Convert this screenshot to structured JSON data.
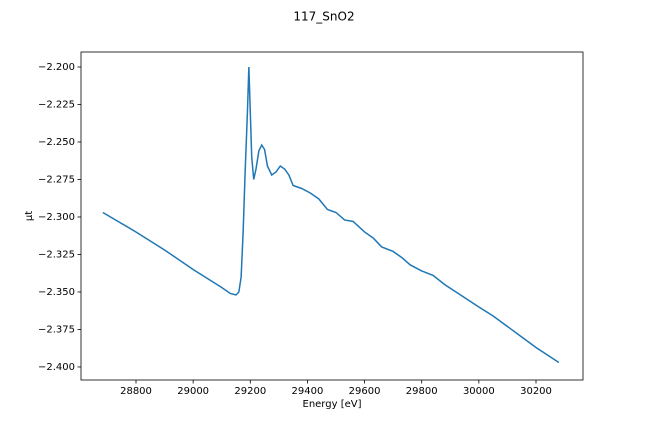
{
  "chart_data": {
    "type": "line",
    "title": "117_SnO2",
    "xlabel": "Energy [eV]",
    "ylabel": "μt",
    "x": [
      28684,
      28800,
      28900,
      29000,
      29100,
      29130,
      29150,
      29160,
      29168,
      29175,
      29182,
      29190,
      29195,
      29200,
      29205,
      29212,
      29220,
      29230,
      29240,
      29250,
      29260,
      29275,
      29290,
      29305,
      29320,
      29335,
      29350,
      29380,
      29410,
      29440,
      29470,
      29500,
      29530,
      29560,
      29600,
      29630,
      29660,
      29700,
      29730,
      29760,
      29800,
      29840,
      29880,
      29920,
      29960,
      30000,
      30050,
      30100,
      30150,
      30200,
      30240,
      30280
    ],
    "series": [
      {
        "color": "#1f77b4",
        "values": [
          -2.297,
          -2.31,
          -2.322,
          -2.335,
          -2.347,
          -2.351,
          -2.352,
          -2.35,
          -2.34,
          -2.31,
          -2.27,
          -2.23,
          -2.2,
          -2.23,
          -2.26,
          -2.275,
          -2.268,
          -2.256,
          -2.252,
          -2.255,
          -2.266,
          -2.272,
          -2.27,
          -2.266,
          -2.268,
          -2.272,
          -2.279,
          -2.281,
          -2.284,
          -2.288,
          -2.295,
          -2.297,
          -2.302,
          -2.303,
          -2.31,
          -2.314,
          -2.32,
          -2.323,
          -2.327,
          -2.332,
          -2.336,
          -2.339,
          -2.345,
          -2.35,
          -2.355,
          -2.36,
          -2.366,
          -2.373,
          -2.38,
          -2.387,
          -2.392,
          -2.397
        ]
      }
    ],
    "xlim": [
      28607.5,
      30364.5
    ],
    "ylim": [
      -2.4087,
      -2.19
    ],
    "xticks": [
      28800,
      29000,
      29200,
      29400,
      29600,
      29800,
      30000,
      30200
    ],
    "yticks": [
      {
        "value": -2.2,
        "label": "−2.200"
      },
      {
        "value": -2.225,
        "label": "−2.225"
      },
      {
        "value": -2.25,
        "label": "−2.250"
      },
      {
        "value": -2.275,
        "label": "−2.275"
      },
      {
        "value": -2.3,
        "label": "−2.300"
      },
      {
        "value": -2.325,
        "label": "−2.325"
      },
      {
        "value": -2.35,
        "label": "−2.350"
      },
      {
        "value": -2.375,
        "label": "−2.375"
      },
      {
        "value": -2.4,
        "label": "−2.400"
      }
    ],
    "grid": false
  }
}
